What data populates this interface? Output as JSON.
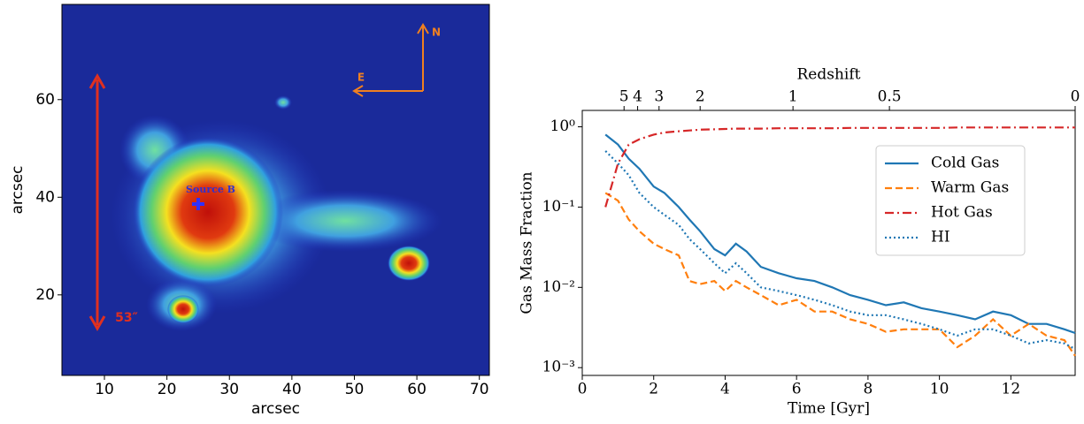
{
  "chart_data": [
    {
      "type": "image",
      "xlabel": "arcsec",
      "ylabel": "arcsec",
      "xlim": [
        3.2,
        71.6
      ],
      "ylim": [
        3.5,
        79.5
      ],
      "xticks": [
        10,
        20,
        30,
        40,
        50,
        60,
        70
      ],
      "yticks": [
        20,
        40,
        60
      ],
      "annotations": [
        "Source B",
        "N",
        "E",
        "53″"
      ]
    },
    {
      "type": "line",
      "xlabel": "Time [Gyr]",
      "ylabel": "Gas Mass Fraction",
      "x2label": "Redshift",
      "xlim": [
        0,
        13.8
      ],
      "ylim": [
        0.0008,
        1.6
      ],
      "yscale": "log",
      "legend": "upper right",
      "xticks": [
        0,
        2,
        4,
        6,
        8,
        10,
        12
      ],
      "yticks": [
        {
          "value": 0.001,
          "label": "10⁻³"
        },
        {
          "value": 0.01,
          "label": "10⁻²"
        },
        {
          "value": 0.1,
          "label": "10⁻¹"
        },
        {
          "value": 1,
          "label": "10⁰"
        }
      ],
      "x2ticks": [
        {
          "value": 1.17,
          "label": "5"
        },
        {
          "value": 1.55,
          "label": "4"
        },
        {
          "value": 2.15,
          "label": "3"
        },
        {
          "value": 3.3,
          "label": "2"
        },
        {
          "value": 5.9,
          "label": "1"
        },
        {
          "value": 8.6,
          "label": "0.5"
        },
        {
          "value": 13.8,
          "label": "0"
        }
      ],
      "x": [
        0.65,
        1.0,
        1.3,
        1.6,
        2.0,
        2.3,
        2.7,
        3.0,
        3.3,
        3.7,
        4.0,
        4.3,
        4.6,
        5.0,
        5.5,
        6.0,
        6.5,
        7.0,
        7.5,
        8.0,
        8.5,
        9.0,
        9.5,
        10.0,
        10.5,
        11.0,
        11.5,
        12.0,
        12.5,
        13.0,
        13.5,
        13.8
      ],
      "series": [
        {
          "name": "Cold Gas",
          "color": "#1f77b4",
          "linestyle": "solid",
          "values": [
            0.8,
            0.6,
            0.4,
            0.3,
            0.18,
            0.15,
            0.1,
            0.07,
            0.05,
            0.03,
            0.025,
            0.035,
            0.028,
            0.018,
            0.015,
            0.013,
            0.012,
            0.01,
            0.008,
            0.007,
            0.006,
            0.0065,
            0.0055,
            0.005,
            0.0045,
            0.004,
            0.005,
            0.0045,
            0.0035,
            0.0035,
            0.003,
            0.0027
          ]
        },
        {
          "name": "Warm Gas",
          "color": "#ff7f0e",
          "linestyle": "dashed",
          "values": [
            0.15,
            0.12,
            0.07,
            0.05,
            0.035,
            0.03,
            0.025,
            0.012,
            0.011,
            0.012,
            0.009,
            0.012,
            0.01,
            0.008,
            0.006,
            0.007,
            0.005,
            0.005,
            0.004,
            0.0035,
            0.0028,
            0.003,
            0.003,
            0.003,
            0.0018,
            0.0025,
            0.004,
            0.0025,
            0.0035,
            0.0025,
            0.0022,
            0.0014
          ]
        },
        {
          "name": "Hot Gas",
          "color": "#d62728",
          "linestyle": "dashdot",
          "values": [
            0.1,
            0.35,
            0.6,
            0.7,
            0.8,
            0.85,
            0.88,
            0.9,
            0.92,
            0.93,
            0.94,
            0.95,
            0.95,
            0.95,
            0.96,
            0.96,
            0.96,
            0.96,
            0.97,
            0.97,
            0.97,
            0.97,
            0.97,
            0.97,
            0.98,
            0.98,
            0.98,
            0.98,
            0.98,
            0.98,
            0.98,
            0.98
          ]
        },
        {
          "name": "HI",
          "color": "#1f77b4",
          "linestyle": "dotted",
          "values": [
            0.5,
            0.35,
            0.25,
            0.15,
            0.1,
            0.08,
            0.06,
            0.04,
            0.03,
            0.02,
            0.015,
            0.02,
            0.015,
            0.01,
            0.009,
            0.008,
            0.007,
            0.006,
            0.005,
            0.0045,
            0.0045,
            0.004,
            0.0035,
            0.003,
            0.0025,
            0.003,
            0.003,
            0.0025,
            0.002,
            0.0022,
            0.002,
            0.0017
          ]
        }
      ]
    }
  ]
}
